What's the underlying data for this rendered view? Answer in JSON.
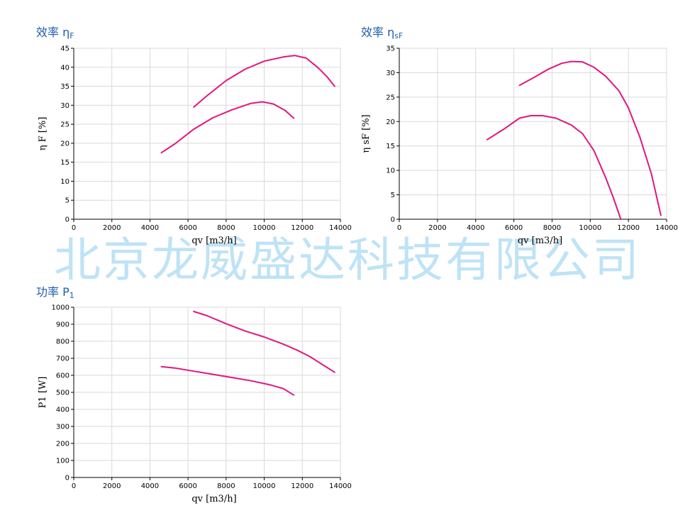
{
  "watermark": "北京龙威盛达科技有限公司",
  "colors": {
    "title": "#1f5fa8",
    "curve": "#e0177f",
    "grid": "#d9d9d9",
    "axis": "#000000"
  },
  "chart_data": [
    {
      "id": "eta_f",
      "type": "line",
      "title_main": "效率 η",
      "title_sub": "F",
      "xlabel": "qv [m3/h]",
      "ylabel": "η F [%]",
      "xlim": [
        0,
        14000
      ],
      "ylim": [
        0,
        45
      ],
      "xticks": [
        0,
        2000,
        4000,
        6000,
        8000,
        10000,
        12000,
        14000
      ],
      "yticks": [
        0,
        5,
        10,
        15,
        20,
        25,
        30,
        35,
        40,
        45
      ],
      "grid": true,
      "series": [
        {
          "x": [
            6300,
            7000,
            8000,
            9000,
            10000,
            11000,
            11600,
            12200,
            12800,
            13300,
            13700
          ],
          "y": [
            29.5,
            32.5,
            36.5,
            39.5,
            41.6,
            42.7,
            43.1,
            42.4,
            40.0,
            37.5,
            35.0
          ]
        },
        {
          "x": [
            4600,
            5300,
            6300,
            7300,
            8300,
            9300,
            9900,
            10500,
            11100,
            11550
          ],
          "y": [
            17.5,
            19.8,
            23.7,
            26.7,
            28.8,
            30.5,
            30.9,
            30.3,
            28.6,
            26.6
          ]
        }
      ]
    },
    {
      "id": "eta_sf",
      "type": "line",
      "title_main": "效率 η",
      "title_sub": "sF",
      "xlabel": "qv [m3/h]",
      "ylabel": "η sF [%]",
      "xlim": [
        0,
        14000
      ],
      "ylim": [
        0,
        35
      ],
      "xticks": [
        0,
        2000,
        4000,
        6000,
        8000,
        10000,
        12000,
        14000
      ],
      "yticks": [
        0,
        5,
        10,
        15,
        20,
        25,
        30,
        35
      ],
      "grid": true,
      "series": [
        {
          "x": [
            6300,
            7000,
            7800,
            8500,
            9000,
            9600,
            10200,
            10800,
            11500,
            12000,
            12600,
            13200,
            13700
          ],
          "y": [
            27.4,
            28.9,
            30.7,
            31.9,
            32.3,
            32.2,
            31.1,
            29.3,
            26.3,
            22.8,
            16.8,
            9.3,
            0.8
          ]
        },
        {
          "x": [
            4600,
            5500,
            6300,
            6900,
            7500,
            8200,
            9000,
            9600,
            10200,
            10800,
            11200,
            11600
          ],
          "y": [
            16.3,
            18.5,
            20.7,
            21.2,
            21.2,
            20.7,
            19.3,
            17.5,
            14.0,
            8.6,
            4.5,
            0.0
          ]
        }
      ]
    },
    {
      "id": "p1",
      "type": "line",
      "title_main": "功率 P",
      "title_sub": "1",
      "xlabel": "qv [m3/h]",
      "ylabel": "P1 [W]",
      "xlim": [
        0,
        14000
      ],
      "ylim": [
        0,
        1000
      ],
      "xticks": [
        0,
        2000,
        4000,
        6000,
        8000,
        10000,
        12000,
        14000
      ],
      "yticks": [
        0,
        100,
        200,
        300,
        400,
        500,
        600,
        700,
        800,
        900,
        1000
      ],
      "grid": true,
      "series": [
        {
          "x": [
            6300,
            7000,
            8000,
            9000,
            10000,
            11000,
            11700,
            12400,
            13000,
            13700
          ],
          "y": [
            975,
            950,
            903,
            860,
            825,
            783,
            749,
            710,
            667,
            618
          ]
        },
        {
          "x": [
            4600,
            5300,
            6300,
            7300,
            8300,
            9300,
            10300,
            11000,
            11550
          ],
          "y": [
            651,
            643,
            624,
            606,
            587,
            568,
            544,
            522,
            484
          ]
        }
      ]
    }
  ]
}
